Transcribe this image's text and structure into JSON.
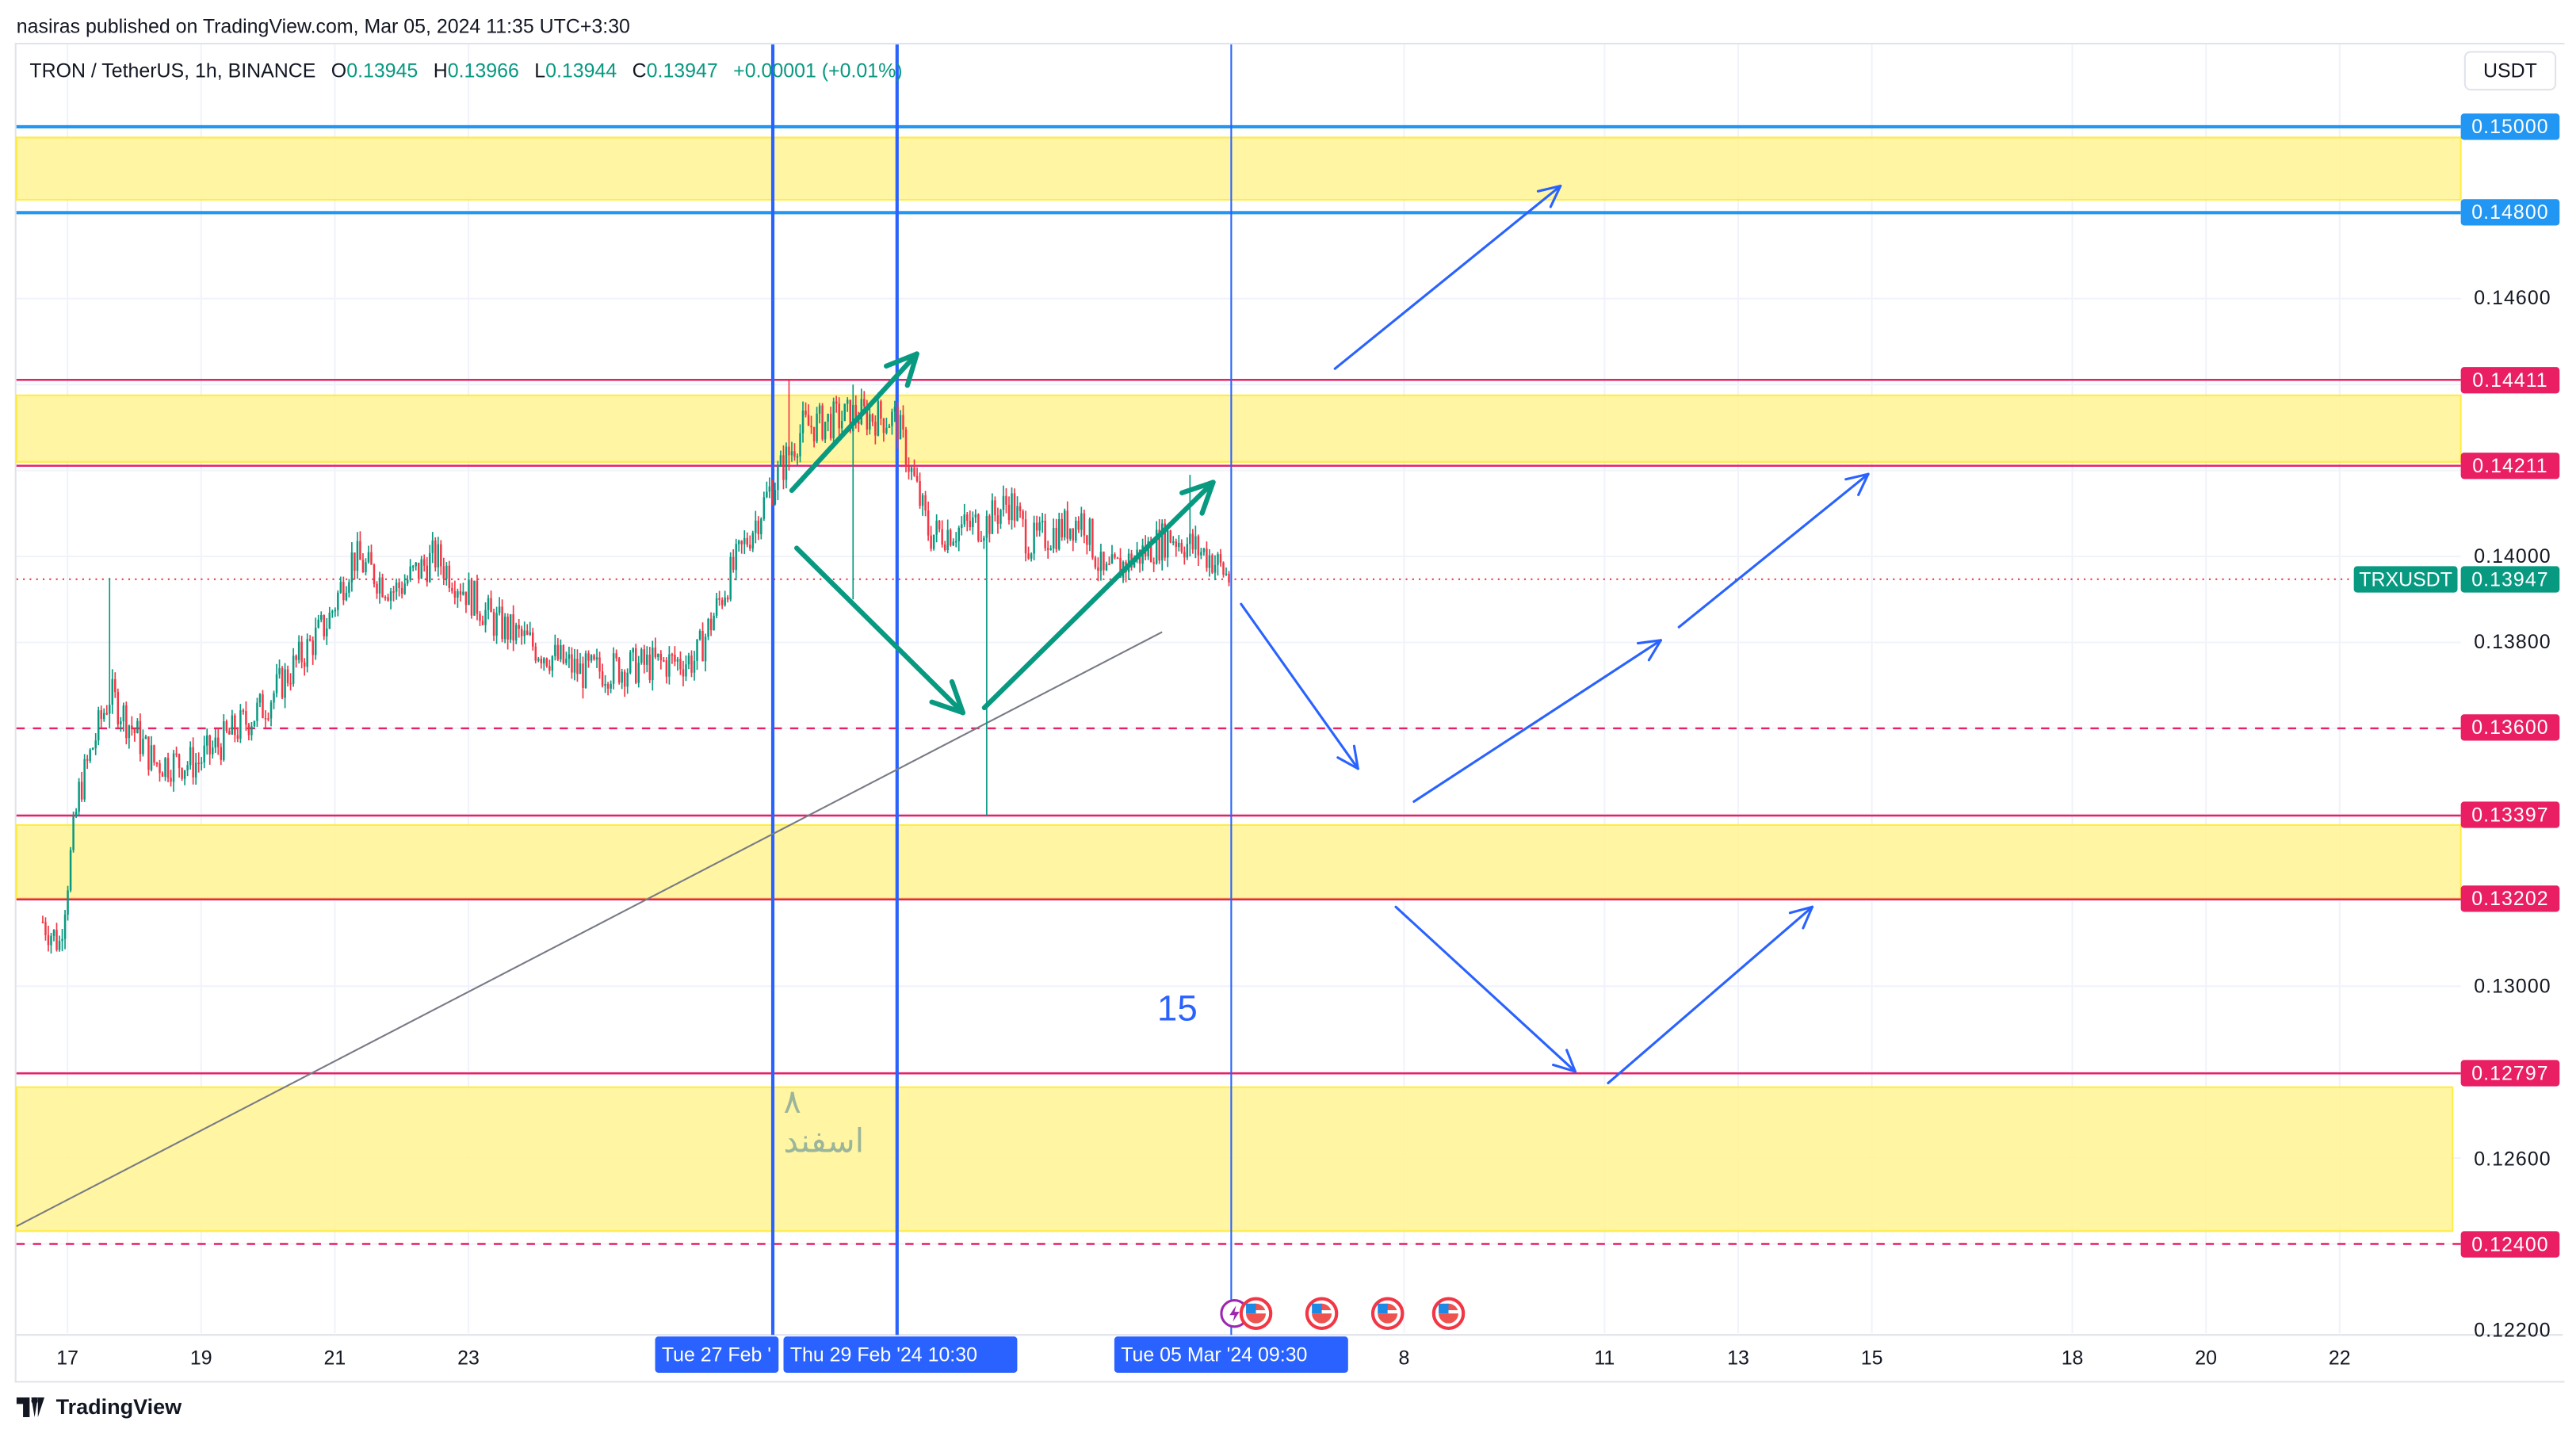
{
  "header": {
    "published": "nasiras published on TradingView.com, Mar 05, 2024 11:35 UTC+3:30"
  },
  "legend": {
    "symbol": "TRON / TetherUS, 1h, BINANCE",
    "o_label": "O",
    "o": "0.13945",
    "h_label": "H",
    "h": "0.13966",
    "l_label": "L",
    "l": "0.13944",
    "c_label": "C",
    "c": "0.13947",
    "change": "+0.00001 (+0.01%)"
  },
  "currency": "USDT",
  "price_axis": {
    "ticks": [
      {
        "label": "0.14600",
        "p": 0.146
      },
      {
        "label": "0.14000",
        "p": 0.14
      },
      {
        "label": "0.13800",
        "p": 0.138
      },
      {
        "label": "0.13000",
        "p": 0.13
      },
      {
        "label": "0.12600",
        "p": 0.126
      },
      {
        "label": "0.12200",
        "p": 0.122
      }
    ],
    "tags": [
      {
        "label": "0.15000",
        "p": 0.15,
        "color": "#2196f3"
      },
      {
        "label": "0.14800",
        "p": 0.148,
        "color": "#2196f3"
      },
      {
        "label": "0.14411",
        "p": 0.14411,
        "color": "#e91e63"
      },
      {
        "label": "0.14211",
        "p": 0.14211,
        "color": "#e91e63"
      },
      {
        "label": "0.13600",
        "p": 0.136,
        "color": "#e91e63"
      },
      {
        "label": "0.13397",
        "p": 0.13397,
        "color": "#e91e63"
      },
      {
        "label": "0.13202",
        "p": 0.13202,
        "color": "#e91e63"
      },
      {
        "label": "0.12797",
        "p": 0.12797,
        "color": "#e91e63"
      },
      {
        "label": "0.12400",
        "p": 0.124,
        "color": "#e91e63"
      }
    ],
    "symbol_tag": "TRXUSDT",
    "last_price": "0.13947"
  },
  "time_axis": {
    "ticks": [
      {
        "label": "17",
        "d": 0
      },
      {
        "label": "19",
        "d": 2
      },
      {
        "label": "21",
        "d": 4
      },
      {
        "label": "23",
        "d": 6
      },
      {
        "label": "8",
        "d": 20
      },
      {
        "label": "11",
        "d": 23
      },
      {
        "label": "13",
        "d": 25
      },
      {
        "label": "15",
        "d": 27
      },
      {
        "label": "18",
        "d": 30
      },
      {
        "label": "20",
        "d": 32
      },
      {
        "label": "22",
        "d": 34
      }
    ],
    "crosshair_labels": [
      "Tue 27 Feb '",
      "Thu 29 Feb '24   10:30",
      "Tue 05 Mar '24   09:30"
    ]
  },
  "annotations": {
    "text_15": "15",
    "persian_digit": "۸",
    "persian_month": "اسفند"
  },
  "events": [
    "lightning-icon",
    "us-flag-icon",
    "us-flag-icon",
    "us-flag-icon",
    "us-flag-icon"
  ],
  "footer": {
    "brand": "TradingView"
  },
  "colors": {
    "up": "#089981",
    "down": "#f23645",
    "zone": "#fff59d",
    "line_blue": "#2196f3",
    "line_pink": "#e91e63",
    "cross": "#2962ff"
  },
  "chart_data": {
    "type": "candlestick",
    "symbol": "TRXUSDT",
    "interval": "1h",
    "x_unit": "days since Feb 17 2024",
    "keypoints": [
      [
        -0.37,
        0.1315
      ],
      [
        -0.12,
        0.131
      ],
      [
        0.17,
        0.1345
      ],
      [
        0.5,
        0.1362
      ],
      [
        0.64,
        0.1368
      ],
      [
        1.3,
        0.1352
      ],
      [
        1.94,
        0.1352
      ],
      [
        2.93,
        0.1365
      ],
      [
        3.9,
        0.1385
      ],
      [
        4.27,
        0.14
      ],
      [
        4.89,
        0.1392
      ],
      [
        5.5,
        0.14
      ],
      [
        6.37,
        0.1385
      ],
      [
        7.1,
        0.1378
      ],
      [
        7.7,
        0.1373
      ],
      [
        8.8,
        0.1375
      ],
      [
        9.4,
        0.1376
      ],
      [
        9.9,
        0.1395
      ],
      [
        10.5,
        0.1415
      ],
      [
        11.0,
        0.143
      ],
      [
        11.8,
        0.1433
      ],
      [
        12.4,
        0.1432
      ],
      [
        12.9,
        0.1405
      ],
      [
        13.76,
        0.1408
      ],
      [
        14.1,
        0.1413
      ],
      [
        14.4,
        0.1403
      ],
      [
        15.2,
        0.1409
      ],
      [
        15.5,
        0.1395
      ],
      [
        16.5,
        0.1405
      ],
      [
        17.1,
        0.14
      ],
      [
        17.4,
        0.13947
      ]
    ],
    "wicks": [
      [
        0.64,
        0.1395,
        0.136
      ],
      [
        11.75,
        0.144,
        0.139
      ],
      [
        13.76,
        0.141,
        0.13397
      ],
      [
        16.8,
        0.1419,
        0.14
      ],
      [
        10.8,
        0.1441,
        0.142
      ]
    ],
    "ylim": [
      0.122,
      0.151
    ]
  }
}
